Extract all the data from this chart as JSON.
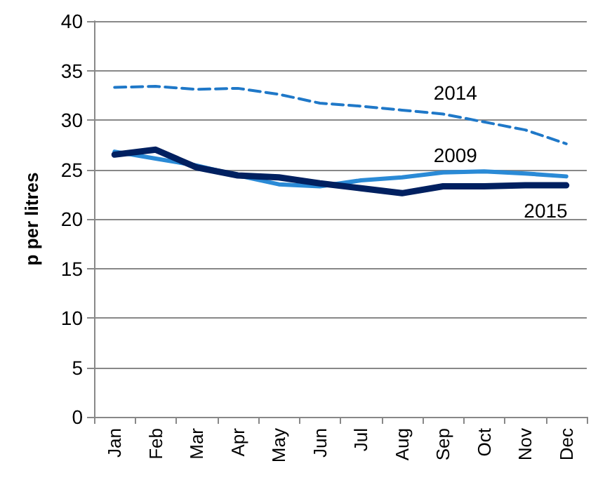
{
  "chart_data": {
    "type": "line",
    "ylabel": "p per litres",
    "categories": [
      "Jan",
      "Feb",
      "Mar",
      "Apr",
      "May",
      "Jun",
      "Jul",
      "Aug",
      "Sep",
      "Oct",
      "Nov",
      "Dec"
    ],
    "series": [
      {
        "name": "2014",
        "color": "#1f78c8",
        "line_style": "dashed",
        "values": [
          33.3,
          33.4,
          33.1,
          33.2,
          32.6,
          31.7,
          31.4,
          31.0,
          30.6,
          29.8,
          29.0,
          27.6
        ]
      },
      {
        "name": "2009",
        "color": "#2a8ad6",
        "line_style": "solid",
        "values": [
          26.8,
          26.1,
          25.4,
          24.4,
          23.5,
          23.3,
          23.9,
          24.2,
          24.7,
          24.8,
          24.6,
          24.3
        ]
      },
      {
        "name": "2015",
        "color": "#002060",
        "line_style": "solid",
        "values": [
          26.5,
          27.0,
          25.2,
          24.4,
          24.2,
          23.6,
          23.1,
          22.6,
          23.3,
          23.3,
          23.4,
          23.4
        ]
      }
    ],
    "ylim": [
      0,
      40
    ],
    "yticks": [
      0,
      5,
      10,
      15,
      20,
      25,
      30,
      35,
      40
    ],
    "grid": "y",
    "legend": false,
    "marker": "none"
  }
}
